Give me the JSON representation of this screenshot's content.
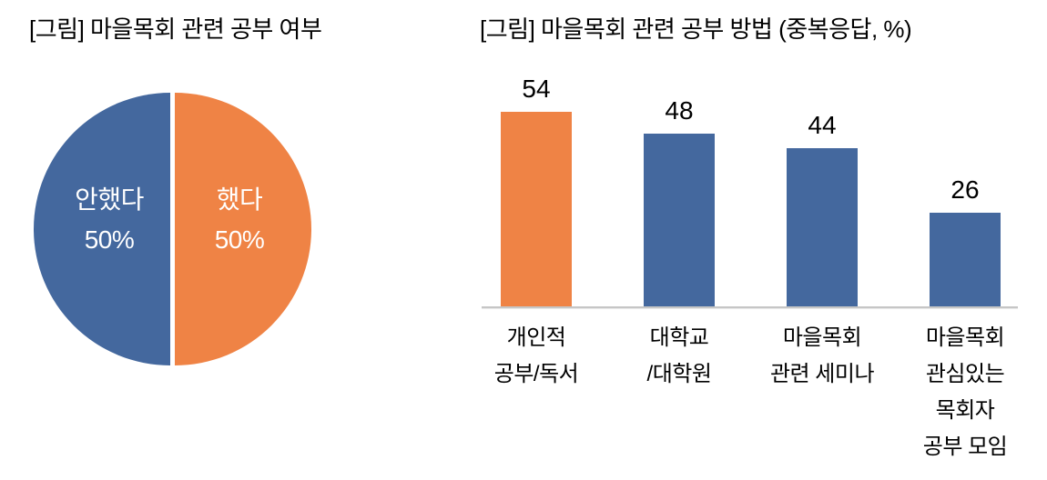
{
  "page": {
    "background_color": "#FFFFFF",
    "text_color": "#000000"
  },
  "chart_data": [
    {
      "type": "pie",
      "title": "[그림] 마을목회 관련 공부 여부",
      "unit": "%",
      "slices": [
        {
          "label": "안했다",
          "value": 50,
          "pct_label": "50%",
          "color": "#44689E",
          "side": "left"
        },
        {
          "label": "했다",
          "value": 50,
          "pct_label": "50%",
          "color": "#EF8345",
          "side": "right"
        }
      ],
      "layout_hints": {
        "legend": "none",
        "data_labels_inside_slices": true,
        "label_text_color": "#FFFFFF",
        "vertical_divider_gap": true
      }
    },
    {
      "type": "bar",
      "title": "[그림] 마을목회 관련 공부 방법 (중복응답, %)",
      "unit": "%",
      "categories": [
        "개인적 공부/독서",
        "대학교/대학원",
        "마을목회 관련 세미나",
        "마을목회 관심있는 목회자 공부 모임"
      ],
      "category_label_lines": [
        [
          "개인적",
          "공부/독서"
        ],
        [
          "대학교",
          "/대학원"
        ],
        [
          "마을목회",
          "관련 세미나"
        ],
        [
          "마을목회",
          "관심있는",
          "목회자",
          "공부 모임"
        ]
      ],
      "values": [
        54,
        48,
        44,
        26
      ],
      "value_labels": [
        "54",
        "48",
        "44",
        "26"
      ],
      "bar_colors": [
        "#EF8345",
        "#44689E",
        "#44689E",
        "#44689E"
      ],
      "ylim": [
        0,
        60
      ],
      "layout_hints": {
        "gridlines": false,
        "y_axis_visible": false,
        "x_axis_line_color": "#C6C6C6",
        "value_labels_above_bars": true,
        "highlight": "first bar orange, others blue"
      }
    }
  ]
}
